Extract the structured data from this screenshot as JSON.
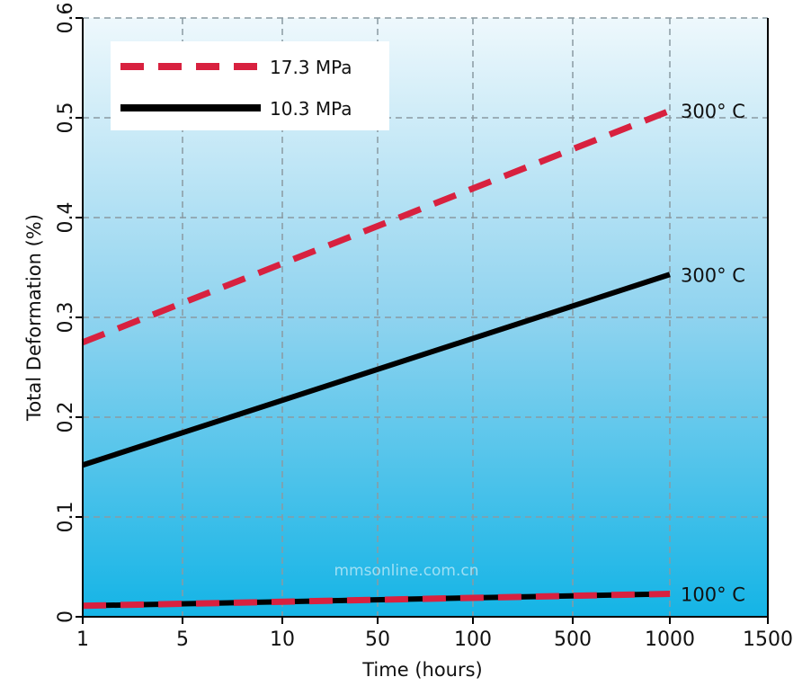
{
  "chart_data": {
    "type": "line",
    "x_ticks": [
      "1",
      "5",
      "10",
      "50",
      "100",
      "500",
      "1000",
      "1500"
    ],
    "y_ticks": [
      "0",
      "0.1",
      "0.2",
      "0.3",
      "0.4",
      "0.5",
      "0.6"
    ],
    "xlabel": "Time (hours)",
    "ylabel": "Total Deformation (%)",
    "ylim": [
      0,
      0.6
    ],
    "grid": true,
    "legend_position": "top-left",
    "legend": [
      {
        "label": "17.3 MPa",
        "color": "#d8213f",
        "style": "dashed"
      },
      {
        "label": "10.3 MPa",
        "color": "#000000",
        "style": "solid"
      }
    ],
    "series": [
      {
        "pressure": "17.3 MPa",
        "label": "300° C",
        "color": "#d8213f",
        "style": "dashed",
        "x": [
          1,
          1000
        ],
        "y": [
          0.275,
          0.507
        ]
      },
      {
        "pressure": "10.3 MPa",
        "label": "300° C",
        "color": "#000000",
        "style": "solid",
        "x": [
          1,
          1000
        ],
        "y": [
          0.152,
          0.343
        ]
      },
      {
        "pressure": "10.3 MPa",
        "label": "100° C",
        "color": "#000000",
        "style": "solid",
        "x": [
          1,
          1000
        ],
        "y": [
          0.011,
          0.023
        ]
      },
      {
        "pressure": "17.3 MPa",
        "label": "100° C",
        "color": "#d8213f",
        "style": "dashed",
        "x": [
          1,
          1000
        ],
        "y": [
          0.011,
          0.023
        ]
      }
    ],
    "watermark": "mmsonline.com.cn"
  }
}
